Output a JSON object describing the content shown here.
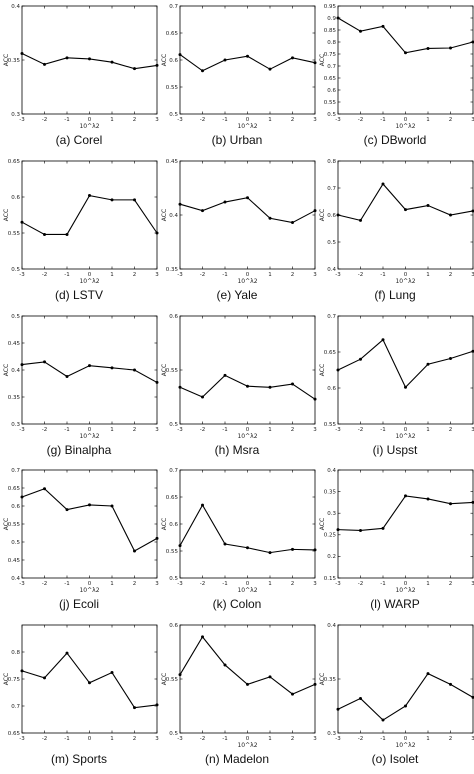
{
  "chart_data": [
    {
      "type": "line",
      "caption": "(a)  Corel",
      "xlabel": "10^λ2",
      "ylabel": "ACC",
      "x": [
        -3,
        -2,
        -1,
        0,
        1,
        2,
        3
      ],
      "xticks": [
        "-3",
        "-2",
        "-1",
        "0",
        "1",
        "2",
        "3"
      ],
      "ylim": [
        0.3,
        0.4
      ],
      "yticks": [
        "0.3",
        "0.35",
        "0.4"
      ],
      "values": [
        0.356,
        0.346,
        0.352,
        0.351,
        0.348,
        0.342,
        0.345
      ]
    },
    {
      "type": "line",
      "caption": "(b)  Urban",
      "xlabel": "10^λ2",
      "ylabel": "ACC",
      "x": [
        -3,
        -2,
        -1,
        0,
        1,
        2,
        3
      ],
      "xticks": [
        "-3",
        "-2",
        "-1",
        "0",
        "1",
        "2",
        "3"
      ],
      "ylim": [
        0.5,
        0.7
      ],
      "yticks": [
        "0.5",
        "0.55",
        "0.6",
        "0.65",
        "0.7"
      ],
      "values": [
        0.61,
        0.58,
        0.6,
        0.607,
        0.583,
        0.604,
        0.595
      ]
    },
    {
      "type": "line",
      "caption": "(c)  DBworld",
      "xlabel": "10^λ2",
      "ylabel": "ACC",
      "x": [
        -3,
        -2,
        -1,
        0,
        1,
        2,
        3
      ],
      "xticks": [
        "-3",
        "-2",
        "-1",
        "0",
        "1",
        "2",
        "3"
      ],
      "ylim": [
        0.5,
        0.95
      ],
      "yticks": [
        "0.5",
        "0.55",
        "0.6",
        "0.65",
        "0.7",
        "0.75",
        "0.8",
        "0.85",
        "0.9",
        "0.95"
      ],
      "values": [
        0.9,
        0.845,
        0.865,
        0.755,
        0.773,
        0.775,
        0.8
      ]
    },
    {
      "type": "line",
      "caption": "(d)  LSTV",
      "xlabel": "10^λ2",
      "ylabel": "ACC",
      "x": [
        -3,
        -2,
        -1,
        0,
        1,
        2,
        3
      ],
      "xticks": [
        "-3",
        "-2",
        "-1",
        "0",
        "1",
        "2",
        "3"
      ],
      "ylim": [
        0.5,
        0.65
      ],
      "yticks": [
        "0.5",
        "0.55",
        "0.6",
        "0.65"
      ],
      "values": [
        0.565,
        0.548,
        0.548,
        0.602,
        0.596,
        0.596,
        0.55
      ]
    },
    {
      "type": "line",
      "caption": "(e)  Yale",
      "xlabel": "10^λ2",
      "ylabel": "ACC",
      "x": [
        -3,
        -2,
        -1,
        0,
        1,
        2,
        3
      ],
      "xticks": [
        "-3",
        "-2",
        "-1",
        "0",
        "1",
        "2",
        "3"
      ],
      "ylim": [
        0.35,
        0.45
      ],
      "yticks": [
        "0.35",
        "0.4",
        "0.45"
      ],
      "values": [
        0.41,
        0.404,
        0.412,
        0.416,
        0.397,
        0.393,
        0.404
      ]
    },
    {
      "type": "line",
      "caption": "(f)  Lung",
      "xlabel": "10^λ2",
      "ylabel": "ACC",
      "x": [
        -3,
        -2,
        -1,
        0,
        1,
        2,
        3
      ],
      "xticks": [
        "-3",
        "-2",
        "-1",
        "0",
        "1",
        "2",
        "3"
      ],
      "ylim": [
        0.4,
        0.8
      ],
      "yticks": [
        "0.4",
        "0.5",
        "0.6",
        "0.7",
        "0.8"
      ],
      "values": [
        0.6,
        0.58,
        0.715,
        0.62,
        0.635,
        0.6,
        0.615
      ]
    },
    {
      "type": "line",
      "caption": "(g)  Binalpha",
      "xlabel": "10^λ2",
      "ylabel": "ACC",
      "x": [
        -3,
        -2,
        -1,
        0,
        1,
        2,
        3
      ],
      "xticks": [
        "-3",
        "-2",
        "-1",
        "0",
        "1",
        "2",
        "3"
      ],
      "ylim": [
        0.3,
        0.5
      ],
      "yticks": [
        "0.3",
        "0.35",
        "0.4",
        "0.45",
        "0.5"
      ],
      "values": [
        0.41,
        0.415,
        0.388,
        0.408,
        0.404,
        0.4,
        0.377
      ]
    },
    {
      "type": "line",
      "caption": "(h)  Msra",
      "xlabel": "10^λ2",
      "ylabel": "ACC",
      "x": [
        -3,
        -2,
        -1,
        0,
        1,
        2,
        3
      ],
      "xticks": [
        "-3",
        "-2",
        "-1",
        "0",
        "1",
        "2",
        "3"
      ],
      "ylim": [
        0.5,
        0.6
      ],
      "yticks": [
        "0.5",
        "0.55",
        "0.6"
      ],
      "values": [
        0.534,
        0.525,
        0.545,
        0.535,
        0.534,
        0.537,
        0.523
      ]
    },
    {
      "type": "line",
      "caption": "(i)  Uspst",
      "xlabel": "10^λ2",
      "ylabel": "ACC",
      "x": [
        -3,
        -2,
        -1,
        0,
        1,
        2,
        3
      ],
      "xticks": [
        "-3",
        "-2",
        "-1",
        "0",
        "1",
        "2",
        "3"
      ],
      "ylim": [
        0.55,
        0.7
      ],
      "yticks": [
        "0.55",
        "0.6",
        "0.65",
        "0.7"
      ],
      "values": [
        0.625,
        0.64,
        0.667,
        0.601,
        0.633,
        0.641,
        0.651
      ]
    },
    {
      "type": "line",
      "caption": "(j)  Ecoli",
      "xlabel": "10^λ2",
      "ylabel": "ACC",
      "x": [
        -3,
        -2,
        -1,
        0,
        1,
        2,
        3
      ],
      "xticks": [
        "-3",
        "-2",
        "-1",
        "0",
        "1",
        "2",
        "3"
      ],
      "ylim": [
        0.4,
        0.7
      ],
      "yticks": [
        "0.4",
        "0.45",
        "0.5",
        "0.55",
        "0.6",
        "0.65",
        "0.7"
      ],
      "values": [
        0.625,
        0.648,
        0.59,
        0.603,
        0.6,
        0.475,
        0.51
      ]
    },
    {
      "type": "line",
      "caption": "(k)  Colon",
      "xlabel": "10^λ2",
      "ylabel": "ACC",
      "x": [
        -3,
        -2,
        -1,
        0,
        1,
        2,
        3
      ],
      "xticks": [
        "-3",
        "-2",
        "-1",
        "0",
        "1",
        "2",
        "3"
      ],
      "ylim": [
        0.5,
        0.7
      ],
      "yticks": [
        "0.5",
        "0.55",
        "0.6",
        "0.65",
        "0.7"
      ],
      "values": [
        0.56,
        0.635,
        0.563,
        0.556,
        0.547,
        0.553,
        0.552
      ]
    },
    {
      "type": "line",
      "caption": "(l)  WARP",
      "xlabel": "10^λ2",
      "ylabel": "ACC",
      "x": [
        -3,
        -2,
        -1,
        0,
        1,
        2,
        3
      ],
      "xticks": [
        "-3",
        "-2",
        "-1",
        "0",
        "1",
        "2",
        "3"
      ],
      "ylim": [
        0.15,
        0.4
      ],
      "yticks": [
        "0.15",
        "0.2",
        "0.25",
        "0.3",
        "0.35",
        "0.4"
      ],
      "values": [
        0.262,
        0.26,
        0.265,
        0.34,
        0.333,
        0.322,
        0.325
      ]
    },
    {
      "type": "line",
      "caption": "(m)  Sports",
      "xlabel": "",
      "ylabel": "ACC",
      "x": [
        -3,
        -2,
        -1,
        0,
        1,
        2,
        3
      ],
      "xticks": [
        "-3",
        "-2",
        "-1",
        "0",
        "1",
        "2",
        "3"
      ],
      "ylim": [
        0.65,
        0.85
      ],
      "yticks": [
        "0.65",
        "0.7",
        "0.75",
        "0.8"
      ],
      "values": [
        0.765,
        0.752,
        0.798,
        0.743,
        0.762,
        0.697,
        0.702
      ]
    },
    {
      "type": "line",
      "caption": "(n)  Madelon",
      "xlabel": "10^λ2",
      "ylabel": "ACC",
      "x": [
        -3,
        -2,
        -1,
        0,
        1,
        2,
        3
      ],
      "xticks": [
        "-3",
        "-2",
        "-1",
        "0",
        "1",
        "2",
        "3"
      ],
      "ylim": [
        0.5,
        0.6
      ],
      "yticks": [
        "0.5",
        "0.55",
        "0.6"
      ],
      "values": [
        0.554,
        0.589,
        0.563,
        0.545,
        0.552,
        0.536,
        0.545
      ]
    },
    {
      "type": "line",
      "caption": "(o)  Isolet",
      "xlabel": "10^λ2",
      "ylabel": "ACC",
      "x": [
        -3,
        -2,
        -1,
        0,
        1,
        2,
        3
      ],
      "xticks": [
        "-3",
        "-2",
        "-1",
        "0",
        "1",
        "2",
        "3"
      ],
      "ylim": [
        0.3,
        0.4
      ],
      "yticks": [
        "0.3",
        "0.35",
        "0.4"
      ],
      "values": [
        0.322,
        0.332,
        0.312,
        0.325,
        0.355,
        0.345,
        0.333
      ]
    }
  ]
}
